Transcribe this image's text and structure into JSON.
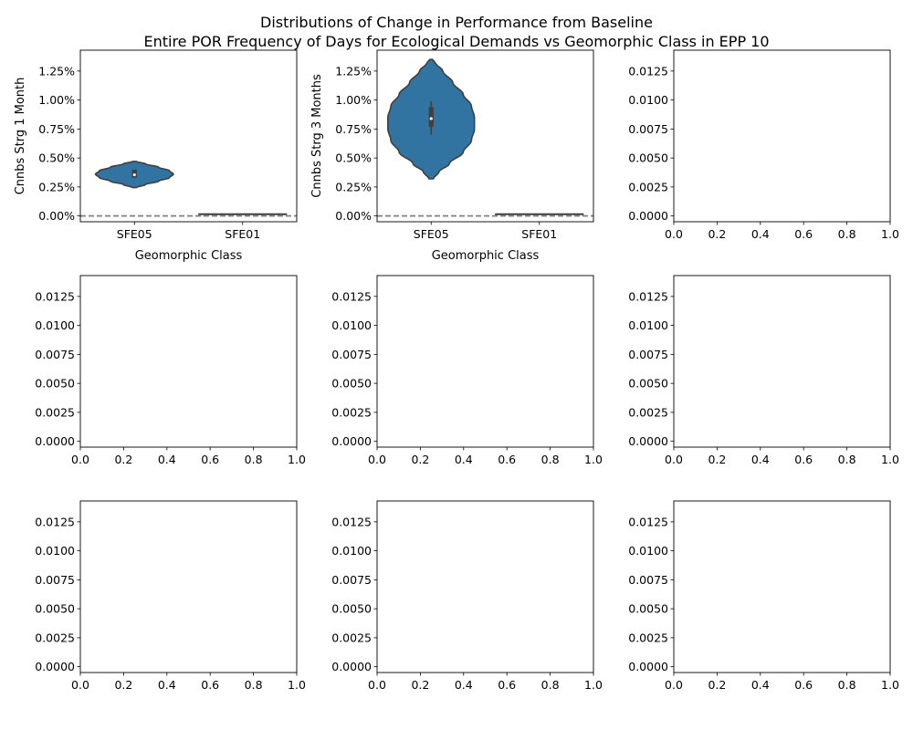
{
  "title_line1": "Distributions of Change in Performance from Baseline",
  "title_line2": "Entire POR Frequency of Days for Ecological Demands vs Geomorphic Class in EPP 10",
  "colors": {
    "violin_fill": "#3274a1",
    "violin_edge": "#3f3f3f",
    "baseline": "#808080",
    "axes": "#000000"
  },
  "chart_data": [
    {
      "type": "violin",
      "ylabel": "Cnnbs Strg 1 Month",
      "xlabel": "Geomorphic Class",
      "categories": [
        "SFE05",
        "SFE01"
      ],
      "ylim": [
        -0.0005,
        0.0143
      ],
      "yticks": [
        0,
        0.0025,
        0.005,
        0.0075,
        0.01,
        0.0125
      ],
      "ytick_labels": [
        "0.00%",
        "0.25%",
        "0.50%",
        "0.75%",
        "1.00%",
        "1.25%"
      ],
      "baseline": 0,
      "violins": [
        {
          "category": "SFE05",
          "min": 0.00245,
          "max": 0.0047,
          "q1": 0.0033,
          "median": 0.00355,
          "q3": 0.004,
          "width_scale": 0.36,
          "profile": [
            [
              0.00245,
              0.05
            ],
            [
              0.0027,
              0.28
            ],
            [
              0.003,
              0.62
            ],
            [
              0.0033,
              0.9
            ],
            [
              0.0036,
              1.0
            ],
            [
              0.0039,
              0.9
            ],
            [
              0.0042,
              0.62
            ],
            [
              0.0045,
              0.28
            ],
            [
              0.0047,
              0.05
            ]
          ]
        },
        {
          "category": "SFE01",
          "flat": true,
          "value": 0.00015
        }
      ]
    },
    {
      "type": "violin",
      "ylabel": "Cnnbs Strg 3 Months",
      "xlabel": "Geomorphic Class",
      "categories": [
        "SFE05",
        "SFE01"
      ],
      "ylim": [
        -0.0005,
        0.0143
      ],
      "yticks": [
        0,
        0.0025,
        0.005,
        0.0075,
        0.01,
        0.0125
      ],
      "ytick_labels": [
        "0.00%",
        "0.25%",
        "0.50%",
        "0.75%",
        "1.00%",
        "1.25%"
      ],
      "baseline": 0,
      "violins": [
        {
          "category": "SFE05",
          "min": 0.0032,
          "max": 0.0135,
          "q1": 0.0077,
          "median": 0.0084,
          "q3": 0.0094,
          "wlo": 0.007,
          "whi": 0.0099,
          "width_scale": 0.4,
          "profile": [
            [
              0.0032,
              0.05
            ],
            [
              0.0038,
              0.18
            ],
            [
              0.0045,
              0.42
            ],
            [
              0.0055,
              0.74
            ],
            [
              0.0065,
              0.93
            ],
            [
              0.0075,
              1.0
            ],
            [
              0.0085,
              1.0
            ],
            [
              0.0095,
              0.93
            ],
            [
              0.0105,
              0.74
            ],
            [
              0.0115,
              0.5
            ],
            [
              0.0125,
              0.27
            ],
            [
              0.0132,
              0.1
            ],
            [
              0.0135,
              0.03
            ]
          ]
        },
        {
          "category": "SFE01",
          "flat": true,
          "value": 0.00015
        }
      ]
    },
    {
      "type": "empty",
      "xlim": [
        0,
        1
      ],
      "ylim": [
        -0.0005,
        0.0143
      ],
      "xtick_labels": [
        "0.0",
        "0.2",
        "0.4",
        "0.6",
        "0.8",
        "1.0"
      ],
      "yticks": [
        0,
        0.0025,
        0.005,
        0.0075,
        0.01,
        0.0125
      ],
      "ytick_labels": [
        "0.0000",
        "0.0025",
        "0.0050",
        "0.0075",
        "0.0100",
        "0.0125"
      ]
    },
    {
      "type": "empty",
      "xlim": [
        0,
        1
      ],
      "ylim": [
        -0.0005,
        0.0143
      ],
      "xtick_labels": [
        "0.0",
        "0.2",
        "0.4",
        "0.6",
        "0.8",
        "1.0"
      ],
      "yticks": [
        0,
        0.0025,
        0.005,
        0.0075,
        0.01,
        0.0125
      ],
      "ytick_labels": [
        "0.0000",
        "0.0025",
        "0.0050",
        "0.0075",
        "0.0100",
        "0.0125"
      ]
    },
    {
      "type": "empty",
      "xlim": [
        0,
        1
      ],
      "ylim": [
        -0.0005,
        0.0143
      ],
      "xtick_labels": [
        "0.0",
        "0.2",
        "0.4",
        "0.6",
        "0.8",
        "1.0"
      ],
      "yticks": [
        0,
        0.0025,
        0.005,
        0.0075,
        0.01,
        0.0125
      ],
      "ytick_labels": [
        "0.0000",
        "0.0025",
        "0.0050",
        "0.0075",
        "0.0100",
        "0.0125"
      ]
    },
    {
      "type": "empty",
      "xlim": [
        0,
        1
      ],
      "ylim": [
        -0.0005,
        0.0143
      ],
      "xtick_labels": [
        "0.0",
        "0.2",
        "0.4",
        "0.6",
        "0.8",
        "1.0"
      ],
      "yticks": [
        0,
        0.0025,
        0.005,
        0.0075,
        0.01,
        0.0125
      ],
      "ytick_labels": [
        "0.0000",
        "0.0025",
        "0.0050",
        "0.0075",
        "0.0100",
        "0.0125"
      ]
    },
    {
      "type": "empty",
      "xlim": [
        0,
        1
      ],
      "ylim": [
        -0.0005,
        0.0143
      ],
      "xtick_labels": [
        "0.0",
        "0.2",
        "0.4",
        "0.6",
        "0.8",
        "1.0"
      ],
      "yticks": [
        0,
        0.0025,
        0.005,
        0.0075,
        0.01,
        0.0125
      ],
      "ytick_labels": [
        "0.0000",
        "0.0025",
        "0.0050",
        "0.0075",
        "0.0100",
        "0.0125"
      ]
    },
    {
      "type": "empty",
      "xlim": [
        0,
        1
      ],
      "ylim": [
        -0.0005,
        0.0143
      ],
      "xtick_labels": [
        "0.0",
        "0.2",
        "0.4",
        "0.6",
        "0.8",
        "1.0"
      ],
      "yticks": [
        0,
        0.0025,
        0.005,
        0.0075,
        0.01,
        0.0125
      ],
      "ytick_labels": [
        "0.0000",
        "0.0025",
        "0.0050",
        "0.0075",
        "0.0100",
        "0.0125"
      ]
    },
    {
      "type": "empty",
      "xlim": [
        0,
        1
      ],
      "ylim": [
        -0.0005,
        0.0143
      ],
      "xtick_labels": [
        "0.0",
        "0.2",
        "0.4",
        "0.6",
        "0.8",
        "1.0"
      ],
      "yticks": [
        0,
        0.0025,
        0.005,
        0.0075,
        0.01,
        0.0125
      ],
      "ytick_labels": [
        "0.0000",
        "0.0025",
        "0.0050",
        "0.0075",
        "0.0100",
        "0.0125"
      ]
    }
  ]
}
